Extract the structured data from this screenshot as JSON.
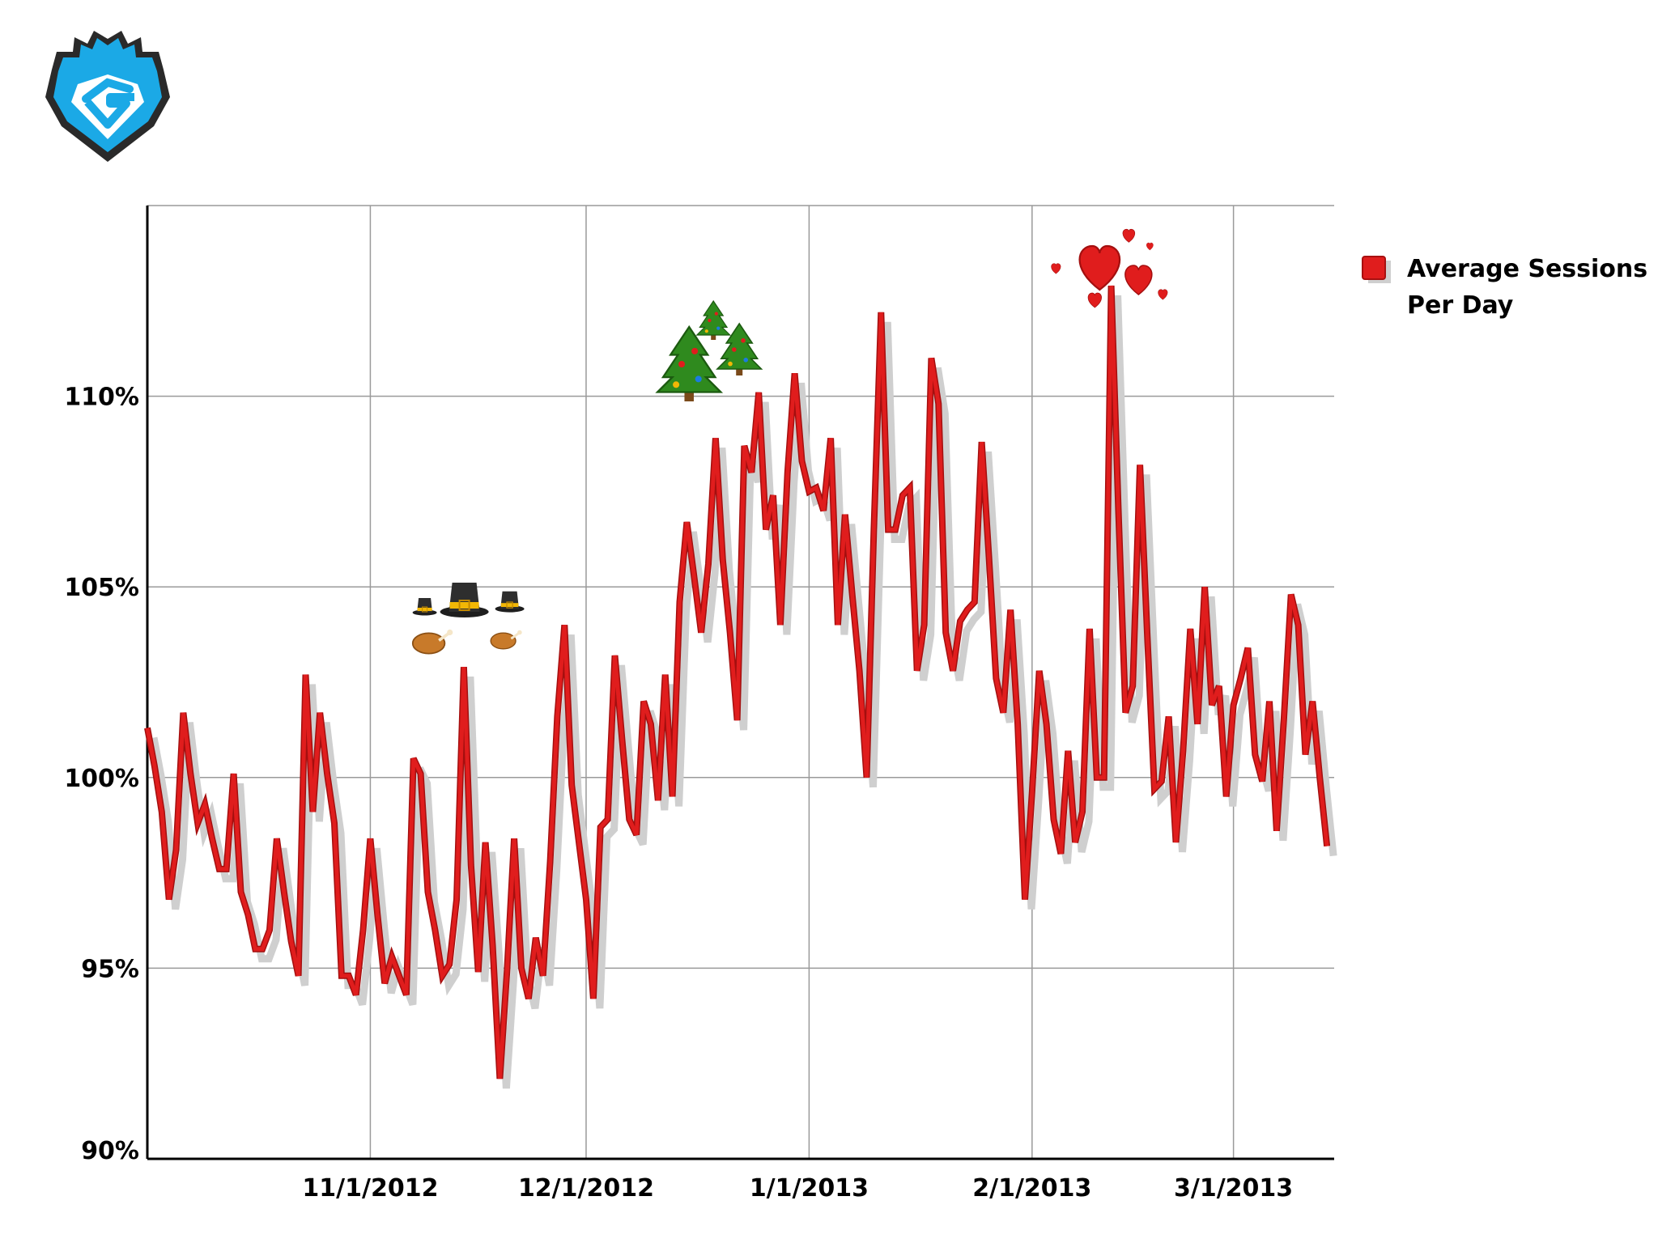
{
  "logo": {
    "icon": "gamer-g-logo"
  },
  "chart_data": {
    "type": "line",
    "title": "",
    "xlabel": "",
    "ylabel": "",
    "x_range": [
      "2012-10-01",
      "2013-03-15"
    ],
    "ylim": [
      90,
      115
    ],
    "y_ticks": [
      {
        "value": 90,
        "label": "90%"
      },
      {
        "value": 95,
        "label": "95%"
      },
      {
        "value": 100,
        "label": "100%"
      },
      {
        "value": 105,
        "label": "105%"
      },
      {
        "value": 110,
        "label": "110%"
      }
    ],
    "x_ticks": [
      {
        "date": "2012-11-01",
        "label": "11/1/2012"
      },
      {
        "date": "2012-12-01",
        "label": "12/1/2012"
      },
      {
        "date": "2013-01-01",
        "label": "1/1/2013"
      },
      {
        "date": "2013-02-01",
        "label": "2/1/2013"
      },
      {
        "date": "2013-03-01",
        "label": "3/1/2013"
      }
    ],
    "grid": true,
    "legend_position": "right",
    "series": [
      {
        "name": "Average Sessions Per Day",
        "color": "#e01d1d",
        "shadow_color": "#cfcfcf",
        "points": [
          [
            "2012-10-01",
            101.3
          ],
          [
            "2012-10-02",
            100.3
          ],
          [
            "2012-10-03",
            99.1
          ],
          [
            "2012-10-04",
            96.8
          ],
          [
            "2012-10-05",
            98.1
          ],
          [
            "2012-10-06",
            101.7
          ],
          [
            "2012-10-07",
            100.1
          ],
          [
            "2012-10-08",
            98.8
          ],
          [
            "2012-10-09",
            99.3
          ],
          [
            "2012-10-10",
            98.4
          ],
          [
            "2012-10-11",
            97.6
          ],
          [
            "2012-10-12",
            97.6
          ],
          [
            "2012-10-13",
            100.1
          ],
          [
            "2012-10-14",
            97.0
          ],
          [
            "2012-10-15",
            96.4
          ],
          [
            "2012-10-16",
            95.5
          ],
          [
            "2012-10-17",
            95.5
          ],
          [
            "2012-10-18",
            96.0
          ],
          [
            "2012-10-19",
            98.4
          ],
          [
            "2012-10-20",
            97.0
          ],
          [
            "2012-10-21",
            95.7
          ],
          [
            "2012-10-22",
            94.8
          ],
          [
            "2012-10-23",
            102.7
          ],
          [
            "2012-10-24",
            99.1
          ],
          [
            "2012-10-25",
            101.7
          ],
          [
            "2012-10-26",
            100.1
          ],
          [
            "2012-10-27",
            98.8
          ],
          [
            "2012-10-28",
            94.8
          ],
          [
            "2012-10-29",
            94.8
          ],
          [
            "2012-10-30",
            94.3
          ],
          [
            "2012-10-31",
            96.0
          ],
          [
            "2012-11-01",
            98.4
          ],
          [
            "2012-11-02",
            96.4
          ],
          [
            "2012-11-03",
            94.6
          ],
          [
            "2012-11-04",
            95.3
          ],
          [
            "2012-11-05",
            94.8
          ],
          [
            "2012-11-06",
            94.3
          ],
          [
            "2012-11-07",
            100.5
          ],
          [
            "2012-11-08",
            100.1
          ],
          [
            "2012-11-09",
            97.0
          ],
          [
            "2012-11-10",
            96.0
          ],
          [
            "2012-11-11",
            94.8
          ],
          [
            "2012-11-12",
            95.1
          ],
          [
            "2012-11-13",
            96.8
          ],
          [
            "2012-11-14",
            102.9
          ],
          [
            "2012-11-15",
            97.7
          ],
          [
            "2012-11-16",
            94.9
          ],
          [
            "2012-11-17",
            98.3
          ],
          [
            "2012-11-18",
            95.6
          ],
          [
            "2012-11-19",
            92.1
          ],
          [
            "2012-11-20",
            94.9
          ],
          [
            "2012-11-21",
            98.4
          ],
          [
            "2012-11-22",
            95.0
          ],
          [
            "2012-11-23",
            94.2
          ],
          [
            "2012-11-24",
            95.8
          ],
          [
            "2012-11-25",
            94.8
          ],
          [
            "2012-11-26",
            97.8
          ],
          [
            "2012-11-27",
            101.6
          ],
          [
            "2012-11-28",
            104.0
          ],
          [
            "2012-11-29",
            99.8
          ],
          [
            "2012-11-30",
            98.3
          ],
          [
            "2012-12-01",
            96.8
          ],
          [
            "2012-12-02",
            94.2
          ],
          [
            "2012-12-03",
            98.7
          ],
          [
            "2012-12-04",
            98.9
          ],
          [
            "2012-12-05",
            103.2
          ],
          [
            "2012-12-06",
            101.0
          ],
          [
            "2012-12-07",
            98.9
          ],
          [
            "2012-12-08",
            98.5
          ],
          [
            "2012-12-09",
            102.0
          ],
          [
            "2012-12-10",
            101.4
          ],
          [
            "2012-12-11",
            99.4
          ],
          [
            "2012-12-12",
            102.7
          ],
          [
            "2012-12-13",
            99.5
          ],
          [
            "2012-12-14",
            104.6
          ],
          [
            "2012-12-15",
            106.7
          ],
          [
            "2012-12-16",
            105.3
          ],
          [
            "2012-12-17",
            103.8
          ],
          [
            "2012-12-18",
            105.6
          ],
          [
            "2012-12-19",
            108.9
          ],
          [
            "2012-12-20",
            105.7
          ],
          [
            "2012-12-21",
            103.8
          ],
          [
            "2012-12-22",
            101.5
          ],
          [
            "2012-12-23",
            108.7
          ],
          [
            "2012-12-24",
            108.0
          ],
          [
            "2012-12-25",
            110.1
          ],
          [
            "2012-12-26",
            106.5
          ],
          [
            "2012-12-27",
            107.4
          ],
          [
            "2012-12-28",
            104.0
          ],
          [
            "2012-12-29",
            108.0
          ],
          [
            "2012-12-30",
            110.6
          ],
          [
            "2012-12-31",
            108.3
          ],
          [
            "2013-01-01",
            107.5
          ],
          [
            "2013-01-02",
            107.6
          ],
          [
            "2013-01-03",
            107.0
          ],
          [
            "2013-01-04",
            108.9
          ],
          [
            "2013-01-05",
            104.0
          ],
          [
            "2013-01-06",
            106.9
          ],
          [
            "2013-01-07",
            104.8
          ],
          [
            "2013-01-08",
            102.8
          ],
          [
            "2013-01-09",
            100.0
          ],
          [
            "2013-01-10",
            106.5
          ],
          [
            "2013-01-11",
            112.2
          ],
          [
            "2013-01-12",
            106.5
          ],
          [
            "2013-01-13",
            106.5
          ],
          [
            "2013-01-14",
            107.4
          ],
          [
            "2013-01-15",
            107.6
          ],
          [
            "2013-01-16",
            102.8
          ],
          [
            "2013-01-17",
            104.0
          ],
          [
            "2013-01-18",
            111.0
          ],
          [
            "2013-01-19",
            109.8
          ],
          [
            "2013-01-20",
            103.8
          ],
          [
            "2013-01-21",
            102.8
          ],
          [
            "2013-01-22",
            104.1
          ],
          [
            "2013-01-23",
            104.4
          ],
          [
            "2013-01-24",
            104.6
          ],
          [
            "2013-01-25",
            108.8
          ],
          [
            "2013-01-26",
            105.8
          ],
          [
            "2013-01-27",
            102.6
          ],
          [
            "2013-01-28",
            101.7
          ],
          [
            "2013-01-29",
            104.4
          ],
          [
            "2013-01-30",
            101.4
          ],
          [
            "2013-01-31",
            96.8
          ],
          [
            "2013-02-01",
            99.6
          ],
          [
            "2013-02-02",
            102.8
          ],
          [
            "2013-02-03",
            101.4
          ],
          [
            "2013-02-04",
            98.9
          ],
          [
            "2013-02-05",
            98.0
          ],
          [
            "2013-02-06",
            100.7
          ],
          [
            "2013-02-07",
            98.3
          ],
          [
            "2013-02-08",
            99.1
          ],
          [
            "2013-02-09",
            103.9
          ],
          [
            "2013-02-10",
            100.0
          ],
          [
            "2013-02-11",
            100.0
          ],
          [
            "2013-02-12",
            112.9
          ],
          [
            "2013-02-13",
            107.0
          ],
          [
            "2013-02-14",
            101.7
          ],
          [
            "2013-02-15",
            102.4
          ],
          [
            "2013-02-16",
            108.2
          ],
          [
            "2013-02-17",
            103.8
          ],
          [
            "2013-02-18",
            99.7
          ],
          [
            "2013-02-19",
            99.9
          ],
          [
            "2013-02-20",
            101.6
          ],
          [
            "2013-02-21",
            98.3
          ],
          [
            "2013-02-22",
            100.7
          ],
          [
            "2013-02-23",
            103.9
          ],
          [
            "2013-02-24",
            101.4
          ],
          [
            "2013-02-25",
            105.0
          ],
          [
            "2013-02-26",
            101.9
          ],
          [
            "2013-02-27",
            102.4
          ],
          [
            "2013-02-28",
            99.5
          ],
          [
            "2013-03-01",
            101.9
          ],
          [
            "2013-03-02",
            102.6
          ],
          [
            "2013-03-03",
            103.4
          ],
          [
            "2013-03-04",
            100.6
          ],
          [
            "2013-03-05",
            99.9
          ],
          [
            "2013-03-06",
            102.0
          ],
          [
            "2013-03-07",
            98.6
          ],
          [
            "2013-03-08",
            101.5
          ],
          [
            "2013-03-09",
            104.8
          ],
          [
            "2013-03-10",
            104.0
          ],
          [
            "2013-03-11",
            100.6
          ],
          [
            "2013-03-12",
            102.0
          ],
          [
            "2013-03-13",
            100.0
          ],
          [
            "2013-03-14",
            98.2
          ]
        ]
      }
    ],
    "annotations": [
      {
        "date": "2012-11-17",
        "icon": "pilgrim-hats-and-turkey-icon"
      },
      {
        "date": "2012-12-25",
        "icon": "christmas-trees-icon"
      },
      {
        "date": "2013-02-14",
        "icon": "valentine-hearts-icon"
      }
    ]
  }
}
